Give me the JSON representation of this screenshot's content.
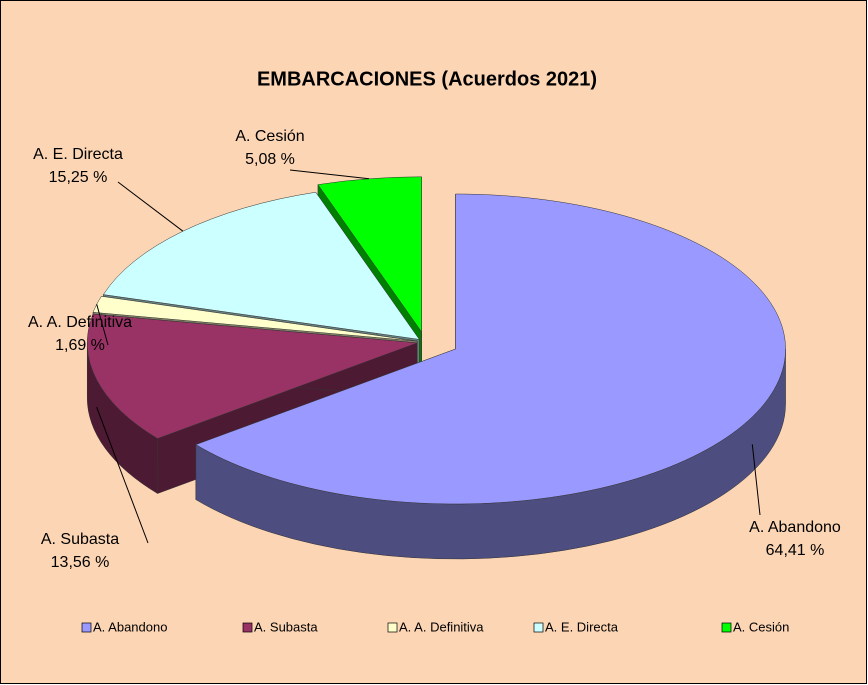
{
  "chart_data": {
    "type": "pie",
    "title": "EMBARCACIONES (Acuerdos 2021)",
    "categories": [
      "A. Abandono",
      "A. Subasta",
      "A. A. Definitiva",
      "A. E. Directa",
      "A. Cesión"
    ],
    "values": [
      64.41,
      13.56,
      1.69,
      15.25,
      5.08
    ],
    "value_labels": [
      "64,41 %",
      "13,56 %",
      "1,69 %",
      "15,25 %",
      "5,08 %"
    ],
    "colors": [
      "#9999ff",
      "#993366",
      "#ffffcc",
      "#ccffff",
      "#00ff00"
    ],
    "legend": "bottom"
  }
}
